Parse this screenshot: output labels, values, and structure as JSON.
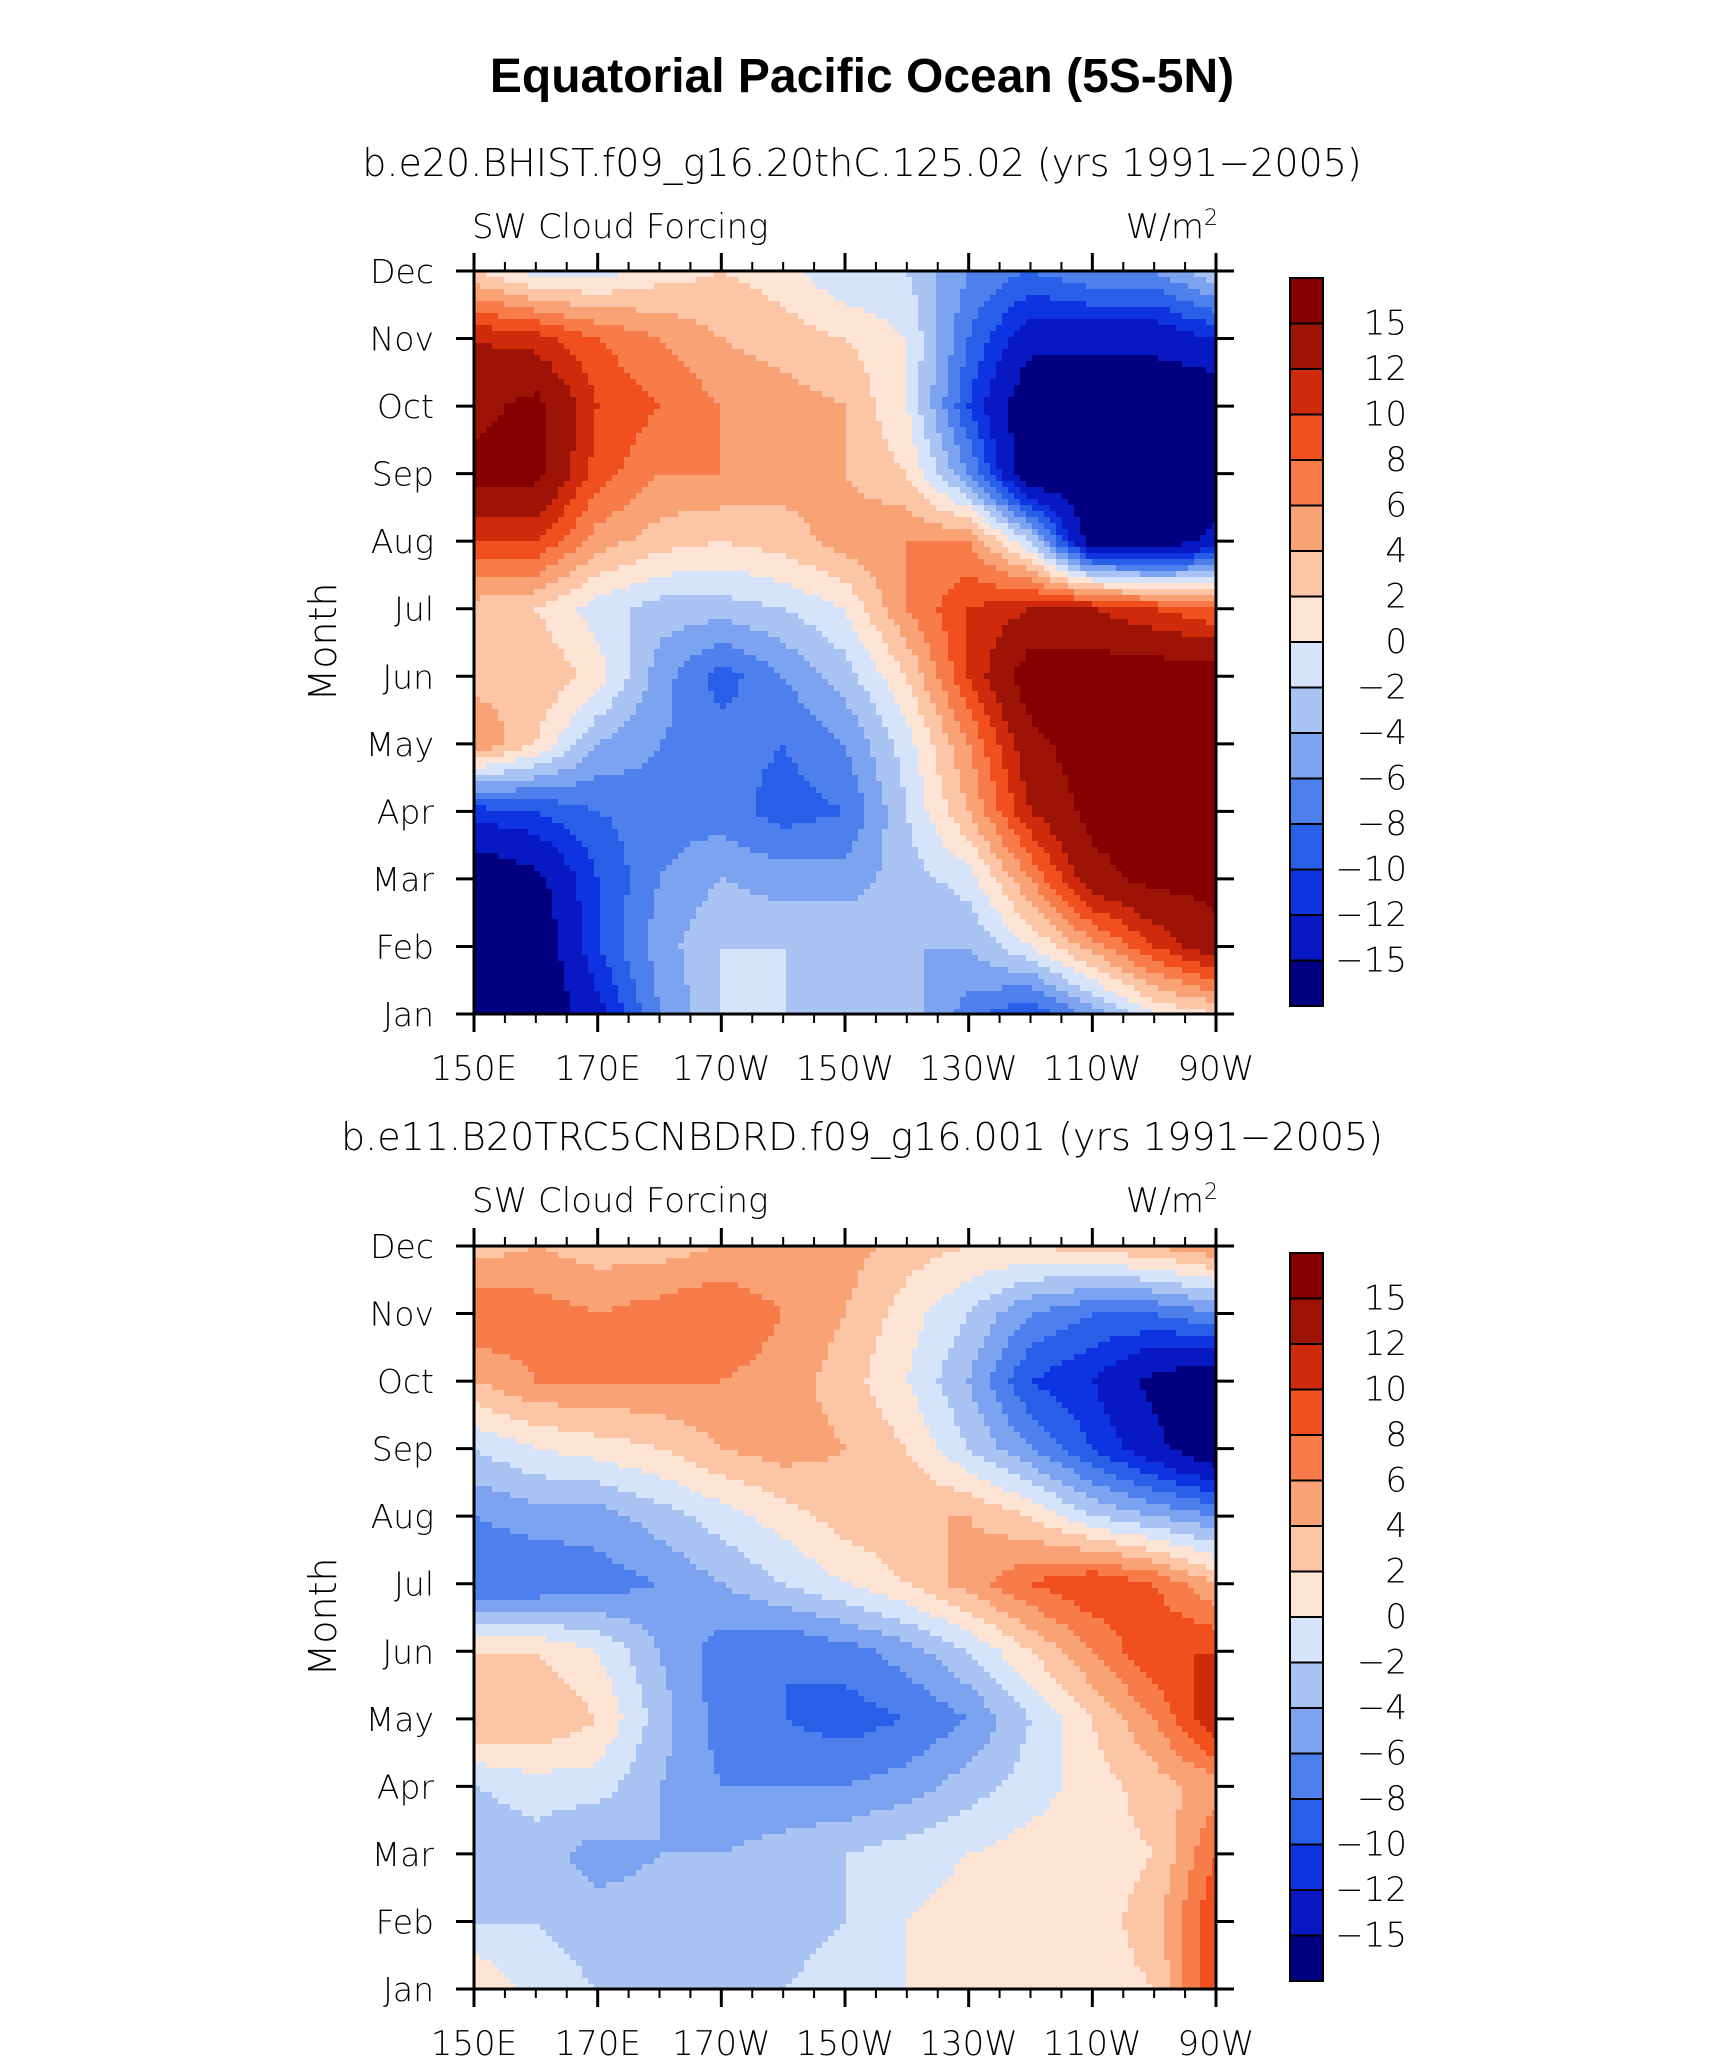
{
  "figure_title": "Equatorial Pacific Ocean (5S-5N)",
  "chart_data": [
    {
      "type": "heatmap",
      "title": "b.e20.BHIST.f09_g16.20thC.125.02 (yrs 1991−2005)",
      "left_label": "SW Cloud Forcing",
      "units": "W/m",
      "units_exponent": "2",
      "ylabel": "Month",
      "y_categories": [
        "Jan",
        "Feb",
        "Mar",
        "Apr",
        "May",
        "Jun",
        "Jul",
        "Aug",
        "Sep",
        "Oct",
        "Nov",
        "Dec"
      ],
      "x_tick_labels": [
        "150E",
        "170E",
        "170W",
        "150W",
        "130W",
        "110W",
        "90W"
      ],
      "x_ticks_lon": [
        150,
        170,
        190,
        210,
        230,
        250,
        270
      ],
      "xlim_lon": [
        150,
        270
      ],
      "x_columns_lon": [
        150,
        160,
        170,
        180,
        190,
        200,
        210,
        220,
        230,
        240,
        250,
        260,
        270
      ],
      "values": [
        [
          -18,
          -18,
          -13,
          -6,
          -2,
          -2,
          -3,
          -3,
          -7,
          -10,
          -5,
          0,
          2
        ],
        [
          -18,
          -18,
          -10,
          -5,
          -2,
          -2,
          -2,
          -4,
          -4,
          0,
          5,
          10,
          14
        ],
        [
          -18,
          -16,
          -10,
          -6,
          -4,
          -5,
          -5,
          -3,
          -1,
          6,
          14,
          16,
          16
        ],
        [
          -11,
          -10,
          -8,
          -7,
          -7,
          -9,
          -8,
          -2,
          4,
          12,
          16,
          16,
          16
        ],
        [
          6,
          2,
          -4,
          -6,
          -7,
          -8,
          -6,
          -1,
          6,
          14,
          17,
          17,
          17
        ],
        [
          3,
          4,
          1,
          -5,
          -9,
          -6,
          -3,
          2,
          10,
          17,
          17,
          17,
          17
        ],
        [
          3,
          2,
          -1,
          -3,
          -3,
          -2,
          0,
          6,
          10,
          12,
          12,
          10,
          8
        ],
        [
          10,
          10,
          5,
          3,
          2,
          3,
          5,
          6,
          6,
          -2,
          -17,
          -18,
          -14
        ],
        [
          16,
          16,
          9,
          6,
          6,
          5,
          4,
          2,
          -6,
          -18,
          -18,
          -18,
          -18
        ],
        [
          14,
          16,
          10,
          8,
          6,
          5,
          4,
          0,
          -10,
          -18,
          -18,
          -18,
          -18
        ],
        [
          12,
          11,
          8,
          6,
          4,
          3,
          2,
          0,
          -8,
          -14,
          -14,
          -14,
          -12
        ],
        [
          2,
          -1,
          -1,
          1,
          2,
          1,
          -2,
          -2,
          -6,
          -8,
          -6,
          -6,
          -2
        ]
      ],
      "contour_levels": [
        -15,
        -12,
        -10,
        -8,
        -6,
        -4,
        -2,
        0,
        2,
        4,
        6,
        8,
        10,
        12,
        15
      ],
      "colorbar_labels": [
        "15",
        "12",
        "10",
        "8",
        "6",
        "4",
        "2",
        "0",
        "−2",
        "−4",
        "−6",
        "−8",
        "−10",
        "−12",
        "−15"
      ]
    },
    {
      "type": "heatmap",
      "title": "b.e11.B20TRC5CNBDRD.f09_g16.001 (yrs 1991−2005)",
      "left_label": "SW Cloud Forcing",
      "units": "W/m",
      "units_exponent": "2",
      "ylabel": "Month",
      "y_categories": [
        "Jan",
        "Feb",
        "Mar",
        "Apr",
        "May",
        "Jun",
        "Jul",
        "Aug",
        "Sep",
        "Oct",
        "Nov",
        "Dec"
      ],
      "x_tick_labels": [
        "150E",
        "170E",
        "170W",
        "150W",
        "130W",
        "110W",
        "90W"
      ],
      "x_ticks_lon": [
        150,
        170,
        190,
        210,
        230,
        250,
        270
      ],
      "xlim_lon": [
        150,
        270
      ],
      "x_columns_lon": [
        150,
        160,
        170,
        180,
        190,
        200,
        210,
        220,
        230,
        240,
        250,
        260,
        270
      ],
      "values": [
        [
          2,
          -1,
          -2,
          -3,
          -3,
          -2,
          -1,
          0,
          1,
          1,
          1,
          2,
          10
        ],
        [
          -2,
          -2,
          -3,
          -3,
          -4,
          -3,
          -2,
          0,
          1,
          1,
          1,
          3,
          10
        ],
        [
          -4,
          -3,
          -5,
          -4,
          -4,
          -3,
          -2,
          -1,
          0,
          1,
          1,
          2,
          8
        ],
        [
          -2,
          -1,
          -1,
          -4,
          -6,
          -6,
          -6,
          -5,
          -3,
          -1,
          1,
          3,
          5
        ],
        [
          4,
          4,
          2,
          -3,
          -7,
          -8,
          -9,
          -8,
          -6,
          -2,
          2,
          6,
          12
        ],
        [
          2,
          2,
          0,
          -4,
          -7,
          -8,
          -7,
          -5,
          -2,
          2,
          6,
          10,
          10
        ],
        [
          -8,
          -8,
          -7,
          -6,
          -4,
          -2,
          0,
          2,
          5,
          8,
          10,
          8,
          4
        ],
        [
          -6,
          -5,
          -5,
          -3,
          -1,
          1,
          3,
          4,
          4,
          2,
          -2,
          -4,
          -6
        ],
        [
          -2,
          0,
          1,
          2,
          4,
          5,
          4,
          2,
          -2,
          -6,
          -10,
          -14,
          -18
        ],
        [
          4,
          6,
          6,
          6,
          6,
          5,
          3,
          0,
          -4,
          -10,
          -12,
          -16,
          -18
        ],
        [
          8,
          7,
          6,
          7,
          8,
          6,
          4,
          1,
          -2,
          -6,
          -8,
          -8,
          -6
        ],
        [
          3,
          4,
          3,
          3,
          4,
          4,
          5,
          3,
          2,
          2,
          3,
          4,
          6
        ]
      ],
      "contour_levels": [
        -15,
        -12,
        -10,
        -8,
        -6,
        -4,
        -2,
        0,
        2,
        4,
        6,
        8,
        10,
        12,
        15
      ],
      "colorbar_labels": [
        "15",
        "12",
        "10",
        "8",
        "6",
        "4",
        "2",
        "0",
        "−2",
        "−4",
        "−6",
        "−8",
        "−10",
        "−12",
        "−15"
      ]
    }
  ],
  "palette": [
    "#000080",
    "#0818c2",
    "#0d34e0",
    "#285fe8",
    "#4d80ec",
    "#7ba3f0",
    "#a9c4f3",
    "#d5e4fa",
    "#fde4d4",
    "#fbc5a6",
    "#f9a276",
    "#f77c4a",
    "#f24f1e",
    "#cf2a0b",
    "#9d1407",
    "#850000"
  ]
}
